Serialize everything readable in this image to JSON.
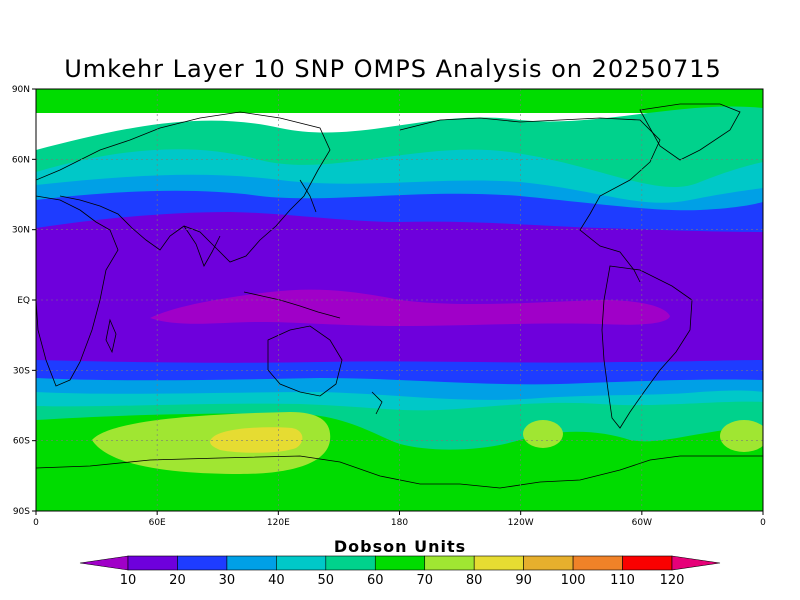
{
  "title": "Umkehr Layer 10 SNP OMPS Analysis on 20250715",
  "map": {
    "lat_ticks": [
      "90N",
      "60N",
      "30N",
      "EQ",
      "30S",
      "60S",
      "90S"
    ],
    "lon_ticks": [
      "0",
      "60E",
      "120E",
      "180",
      "120W",
      "60W",
      "0"
    ],
    "grid": "dotted",
    "projection": "cylindrical equidistant",
    "lon_range": [
      0,
      360
    ],
    "lat_range": [
      -90,
      90
    ]
  },
  "colorbar": {
    "title": "Dobson Units",
    "labels": [
      "10",
      "20",
      "30",
      "40",
      "50",
      "60",
      "70",
      "80",
      "90",
      "100",
      "110",
      "120"
    ],
    "colors": [
      "#a000c8",
      "#6e00dc",
      "#1e3cff",
      "#00a0e6",
      "#00c8c8",
      "#00d28c",
      "#00dc00",
      "#a0e632",
      "#e6dc32",
      "#e6af2d",
      "#f08228",
      "#fa0000",
      "#e60078"
    ]
  },
  "field_colors": {
    "lt20": "#a000c8",
    "b20_30": "#6e00dc",
    "b30_40": "#1e3cff",
    "b40_50": "#00a0e6",
    "b50_60": "#00c8c8",
    "b60_70": "#00d28c",
    "b70_80": "#00dc00",
    "b80_90": "#a0e632",
    "b90_100": "#e6dc32"
  }
}
